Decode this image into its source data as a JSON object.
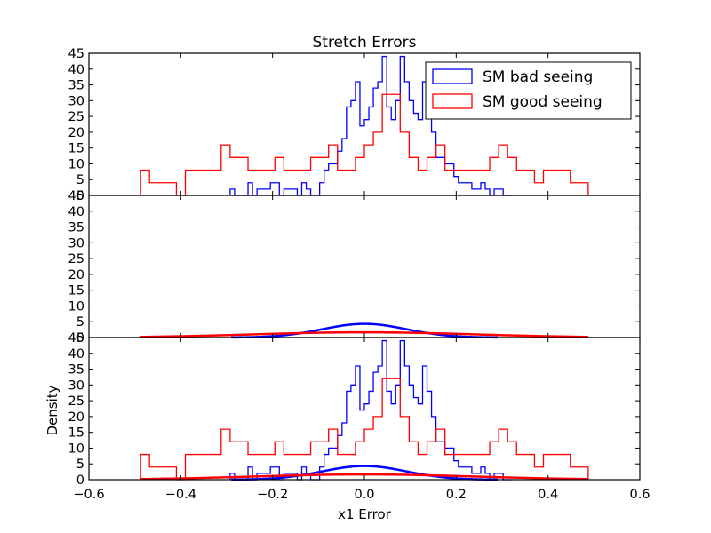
{
  "chart_data": {
    "type": "line",
    "title": "Stretch Errors",
    "xlabel": "x1 Error",
    "ylabel": "Density",
    "xlim": [
      -0.6,
      0.6
    ],
    "ylim": [
      0,
      45
    ],
    "x_ticks": [
      -0.6,
      -0.4,
      -0.2,
      0.0,
      0.2,
      0.4,
      0.6
    ],
    "x_tick_labels": [
      "−0.6",
      "−0.4",
      "−0.2",
      "0.0",
      "0.2",
      "0.4",
      "0.6"
    ],
    "y_ticks": [
      0,
      5,
      10,
      15,
      20,
      25,
      30,
      35,
      40,
      45
    ],
    "grid": false,
    "legend_placement": "top-right",
    "series": [
      {
        "name": "SM bad seeing",
        "color": "#0000ff",
        "histogram": {
          "x_start": -0.2925,
          "bin_width": 0.00975,
          "values": [
            2,
            0,
            0,
            0,
            4,
            0,
            2,
            2,
            2,
            4,
            4,
            0,
            2,
            2,
            2,
            0,
            4,
            2,
            0,
            0,
            4,
            8,
            10,
            10,
            14,
            18,
            28,
            30,
            36,
            22,
            24,
            28,
            34,
            36,
            44,
            28,
            24,
            30,
            44,
            36,
            30,
            26,
            24,
            36,
            28,
            20,
            12,
            12,
            10,
            10,
            6,
            4,
            4,
            4,
            2,
            2,
            4,
            2,
            0,
            2,
            2,
            0,
            0
          ]
        },
        "fit": {
          "mu": 0.0,
          "sigma": 0.092,
          "x_range": [
            -0.29,
            0.29
          ]
        }
      },
      {
        "name": "SM good seeing",
        "color": "#ff0000",
        "histogram": {
          "x_start": -0.4875,
          "bin_width": 0.0195,
          "values": [
            8,
            4,
            4,
            4,
            0,
            8,
            8,
            8,
            8,
            16,
            12,
            12,
            8,
            8,
            8,
            12,
            8,
            8,
            8,
            12,
            12,
            16,
            8,
            8,
            12,
            16,
            20,
            32,
            32,
            20,
            12,
            8,
            12,
            16,
            8,
            8,
            8,
            8,
            8,
            12,
            16,
            12,
            8,
            8,
            4,
            8,
            8,
            8,
            4,
            4
          ]
        },
        "fit": {
          "mu": 0.0,
          "sigma": 0.24,
          "x_range": [
            -0.4875,
            0.4875
          ]
        }
      }
    ],
    "panels": [
      {
        "shows": [
          "histogram"
        ],
        "legend": true
      },
      {
        "shows": [
          "fit"
        ],
        "legend": false
      },
      {
        "shows": [
          "histogram",
          "fit"
        ],
        "legend": false
      }
    ]
  }
}
